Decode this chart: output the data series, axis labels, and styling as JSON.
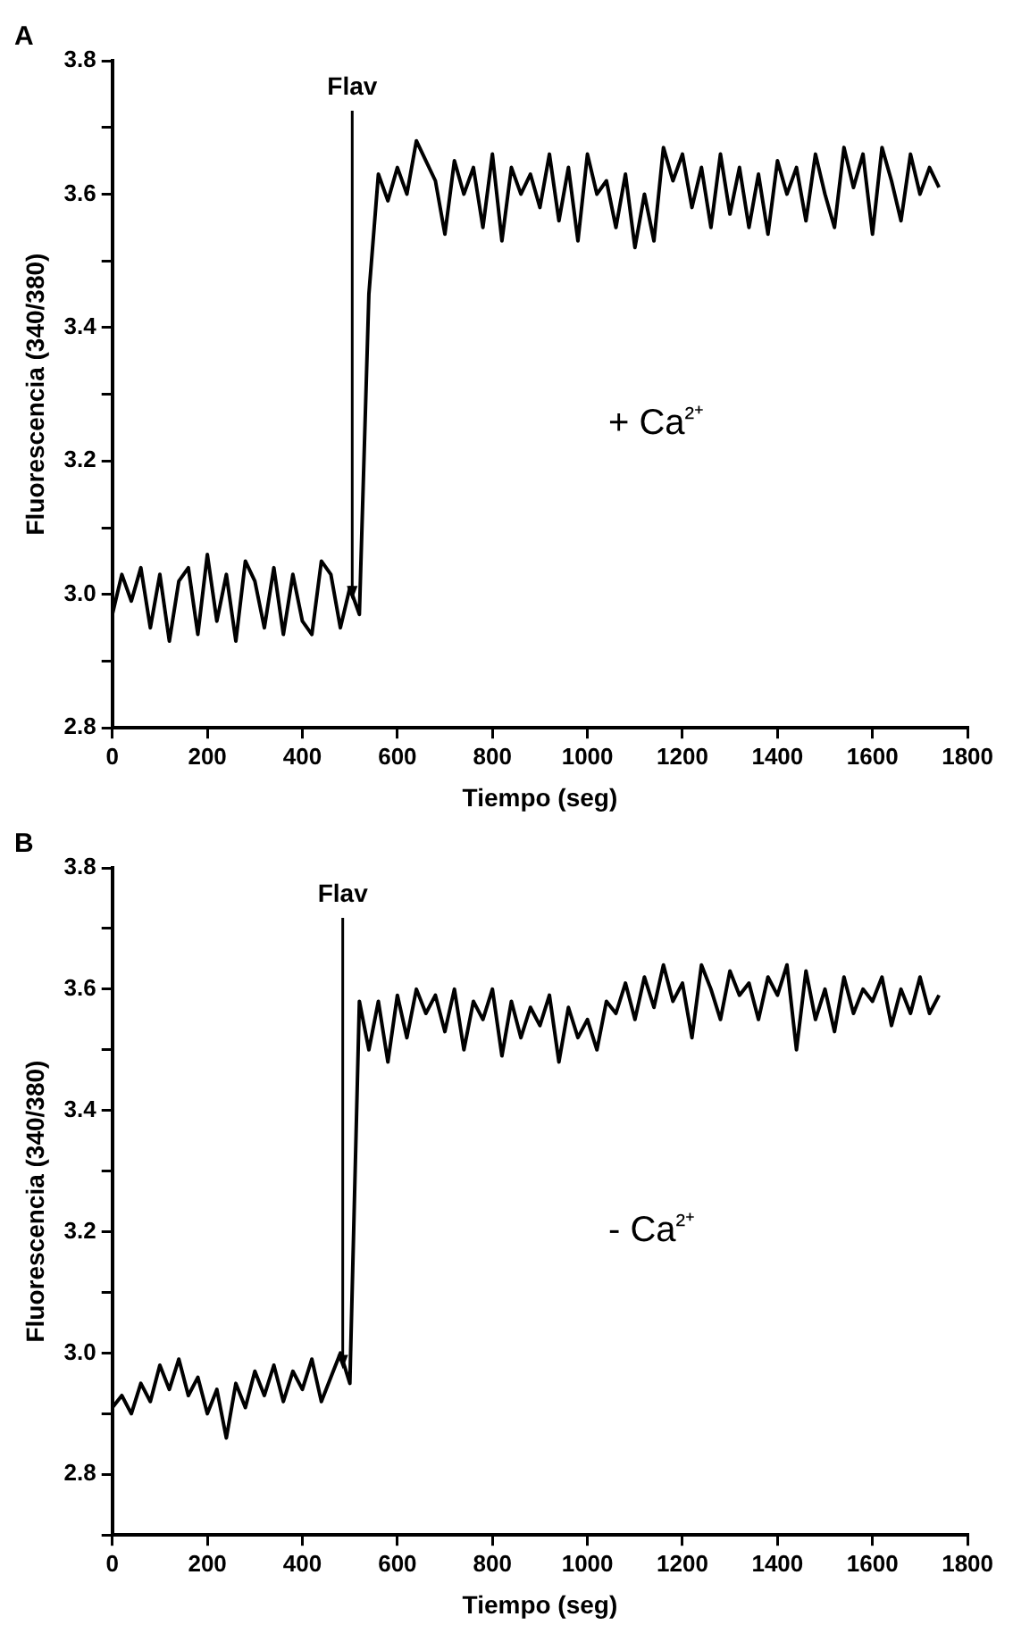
{
  "chart_data": [
    {
      "type": "line",
      "title": "A",
      "xlabel": "Tiempo (seg)",
      "ylabel": "Fluorescencia (340/380)",
      "x": [
        0,
        20,
        40,
        60,
        80,
        100,
        120,
        140,
        160,
        180,
        200,
        220,
        240,
        260,
        280,
        300,
        320,
        340,
        360,
        380,
        400,
        420,
        440,
        460,
        480,
        500,
        520,
        540,
        560,
        580,
        600,
        620,
        640,
        660,
        680,
        700,
        720,
        740,
        760,
        780,
        800,
        820,
        840,
        860,
        880,
        900,
        920,
        940,
        960,
        980,
        1000,
        1020,
        1040,
        1060,
        1080,
        1100,
        1120,
        1140,
        1160,
        1180,
        1200,
        1220,
        1240,
        1260,
        1280,
        1300,
        1320,
        1340,
        1360,
        1380,
        1400,
        1420,
        1440,
        1460,
        1480,
        1500,
        1520,
        1540,
        1560,
        1580,
        1600,
        1620,
        1640,
        1660,
        1680,
        1700,
        1720,
        1740
      ],
      "series": [
        {
          "color": "#000000",
          "values": [
            2.97,
            3.03,
            2.99,
            3.04,
            2.95,
            3.03,
            2.93,
            3.02,
            3.04,
            2.94,
            3.06,
            2.96,
            3.03,
            2.93,
            3.05,
            3.02,
            2.95,
            3.04,
            2.94,
            3.03,
            2.96,
            2.94,
            3.05,
            3.03,
            2.95,
            3.01,
            2.97,
            3.45,
            3.63,
            3.59,
            3.64,
            3.6,
            3.68,
            3.65,
            3.62,
            3.54,
            3.65,
            3.6,
            3.64,
            3.55,
            3.66,
            3.53,
            3.64,
            3.6,
            3.63,
            3.58,
            3.66,
            3.56,
            3.64,
            3.53,
            3.66,
            3.6,
            3.62,
            3.55,
            3.63,
            3.52,
            3.6,
            3.53,
            3.67,
            3.62,
            3.66,
            3.58,
            3.64,
            3.55,
            3.66,
            3.57,
            3.64,
            3.55,
            3.63,
            3.54,
            3.65,
            3.6,
            3.64,
            3.56,
            3.66,
            3.6,
            3.55,
            3.67,
            3.61,
            3.66,
            3.54,
            3.67,
            3.62,
            3.56,
            3.66,
            3.6,
            3.64,
            3.61
          ]
        }
      ],
      "xlim": [
        0,
        1800
      ],
      "xticks": [
        0,
        200,
        400,
        600,
        800,
        1000,
        1200,
        1400,
        1600,
        1800
      ],
      "ylim": [
        2.8,
        3.8
      ],
      "yticks": [
        2.8,
        {
          "value": 2.9,
          "label": null
        },
        {
          "value": 3,
          "label": "3.0"
        },
        {
          "value": 3.1,
          "label": null
        },
        3.2,
        {
          "value": 3.3,
          "label": null
        },
        3.4,
        {
          "value": 3.5,
          "label": null
        },
        3.6,
        {
          "value": 3.7,
          "label": null
        },
        3.8
      ],
      "annotations": [
        "Flav",
        "+ Ca²⁺"
      ],
      "grid": false,
      "legend": false,
      "marker": "none",
      "line_style": "solid"
    },
    {
      "type": "line",
      "title": "B",
      "xlabel": "Tiempo (seg)",
      "ylabel": "Fluorescencia (340/380)",
      "x": [
        0,
        20,
        40,
        60,
        80,
        100,
        120,
        140,
        160,
        180,
        200,
        220,
        240,
        260,
        280,
        300,
        320,
        340,
        360,
        380,
        400,
        420,
        440,
        460,
        480,
        500,
        520,
        540,
        560,
        580,
        600,
        620,
        640,
        660,
        680,
        700,
        720,
        740,
        760,
        780,
        800,
        820,
        840,
        860,
        880,
        900,
        920,
        940,
        960,
        980,
        1000,
        1020,
        1040,
        1060,
        1080,
        1100,
        1120,
        1140,
        1160,
        1180,
        1200,
        1220,
        1240,
        1260,
        1280,
        1300,
        1320,
        1340,
        1360,
        1380,
        1400,
        1420,
        1440,
        1460,
        1480,
        1500,
        1520,
        1540,
        1560,
        1580,
        1600,
        1620,
        1640,
        1660,
        1680,
        1700,
        1720,
        1740
      ],
      "series": [
        {
          "color": "#000000",
          "values": [
            2.91,
            2.93,
            2.9,
            2.95,
            2.92,
            2.98,
            2.94,
            2.99,
            2.93,
            2.96,
            2.9,
            2.94,
            2.86,
            2.95,
            2.91,
            2.97,
            2.93,
            2.98,
            2.92,
            2.97,
            2.94,
            2.99,
            2.92,
            2.96,
            3.0,
            2.95,
            3.58,
            3.5,
            3.58,
            3.48,
            3.59,
            3.52,
            3.6,
            3.56,
            3.59,
            3.53,
            3.6,
            3.5,
            3.58,
            3.55,
            3.6,
            3.49,
            3.58,
            3.52,
            3.57,
            3.54,
            3.59,
            3.48,
            3.57,
            3.52,
            3.55,
            3.5,
            3.58,
            3.56,
            3.61,
            3.55,
            3.62,
            3.57,
            3.64,
            3.58,
            3.61,
            3.52,
            3.64,
            3.6,
            3.55,
            3.63,
            3.59,
            3.61,
            3.55,
            3.62,
            3.59,
            3.64,
            3.5,
            3.63,
            3.55,
            3.6,
            3.53,
            3.62,
            3.56,
            3.6,
            3.58,
            3.62,
            3.54,
            3.6,
            3.56,
            3.62,
            3.56,
            3.59
          ]
        }
      ],
      "xlim": [
        0,
        1800
      ],
      "xticks": [
        0,
        200,
        400,
        600,
        800,
        1000,
        1200,
        1400,
        1600,
        1800
      ],
      "ylim": [
        2.7,
        3.8
      ],
      "yticks": [
        {
          "value": 2.7,
          "label": null
        },
        2.8,
        {
          "value": 2.9,
          "label": null
        },
        {
          "value": 3,
          "label": "3.0"
        },
        {
          "value": 3.1,
          "label": null
        },
        3.2,
        {
          "value": 3.3,
          "label": null
        },
        3.4,
        {
          "value": 3.5,
          "label": null
        },
        3.6,
        {
          "value": 3.7,
          "label": null
        },
        3.8
      ],
      "annotations": [
        "Flav",
        "- Ca²⁺"
      ],
      "grid": false,
      "legend": false,
      "marker": "none",
      "line_style": "solid"
    }
  ]
}
